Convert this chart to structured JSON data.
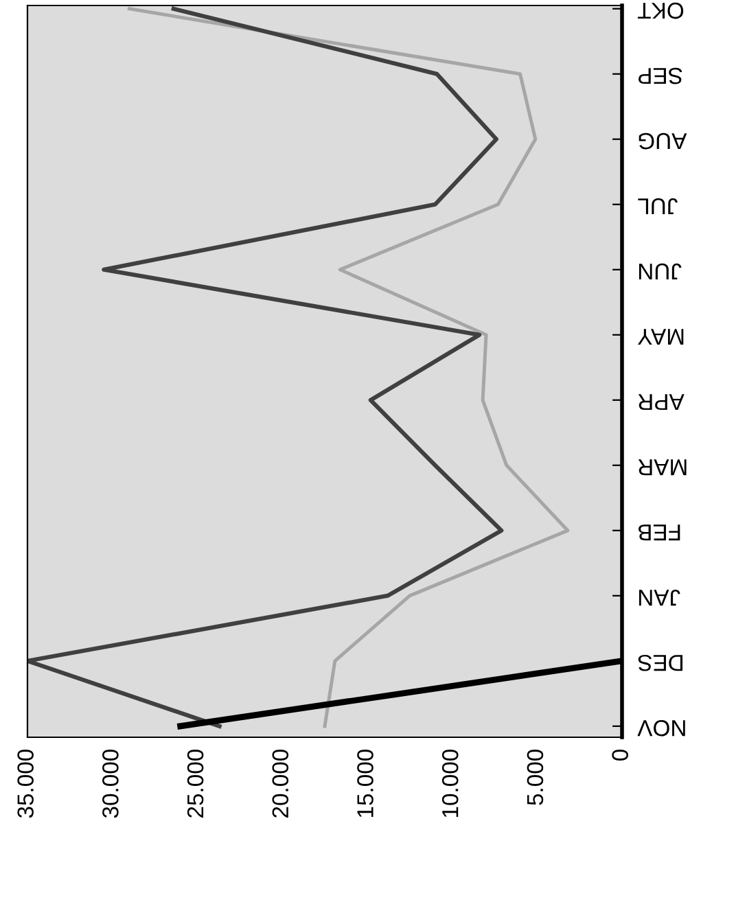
{
  "chart_data": {
    "type": "line",
    "orientation": "horizontal",
    "categories": [
      "OKT",
      "SEP",
      "AUG",
      "JUL",
      "JUN",
      "MAY",
      "APR",
      "MAR",
      "FEB",
      "JAN",
      "DES",
      "NOV"
    ],
    "series": [
      {
        "color": "#a6a6a6",
        "values": [
          29000,
          6000,
          5100,
          7300,
          16600,
          8000,
          8200,
          6800,
          3200,
          12500,
          16900,
          17500
        ]
      },
      {
        "color": "#404040",
        "values": [
          26400,
          10900,
          7400,
          11000,
          30500,
          8400,
          14800,
          11000,
          7100,
          13800,
          35000,
          23700
        ]
      },
      {
        "color": "#000000",
        "values": [
          null,
          null,
          null,
          null,
          null,
          null,
          null,
          null,
          null,
          null,
          0,
          26000
        ]
      }
    ],
    "xlim": [
      35000,
      0
    ],
    "xticks": [
      {
        "value": 35000,
        "label": "35.000"
      },
      {
        "value": 30000,
        "label": "30.000"
      },
      {
        "value": 25000,
        "label": "25.000"
      },
      {
        "value": 20000,
        "label": "20.000"
      },
      {
        "value": 15000,
        "label": "15.000"
      },
      {
        "value": 10000,
        "label": "10.000"
      },
      {
        "value": 5000,
        "label": "5.000"
      },
      0
    ],
    "grid": false,
    "legend": false,
    "marker": "none",
    "line_style": "solid"
  }
}
